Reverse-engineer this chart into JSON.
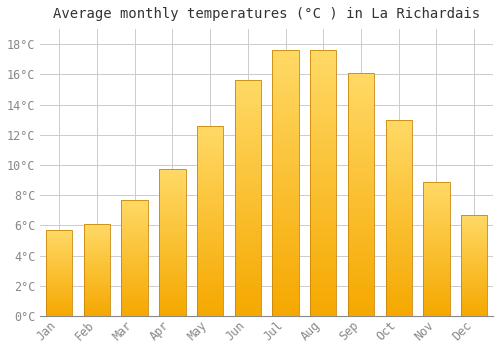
{
  "title": "Average monthly temperatures (°C ) in La Richardais",
  "months": [
    "Jan",
    "Feb",
    "Mar",
    "Apr",
    "May",
    "Jun",
    "Jul",
    "Aug",
    "Sep",
    "Oct",
    "Nov",
    "Dec"
  ],
  "temperatures": [
    5.7,
    6.1,
    7.7,
    9.7,
    12.6,
    15.6,
    17.6,
    17.6,
    16.1,
    13.0,
    8.9,
    6.7
  ],
  "bar_color_bottom": "#F5A800",
  "bar_color_top": "#FFD966",
  "bar_edge_color": "#C8860A",
  "background_color": "#FFFFFF",
  "grid_color": "#CCCCCC",
  "text_color": "#888888",
  "title_color": "#333333",
  "ylim": [
    0,
    19
  ],
  "yticks": [
    0,
    2,
    4,
    6,
    8,
    10,
    12,
    14,
    16,
    18
  ],
  "title_fontsize": 10,
  "tick_fontsize": 8.5,
  "bar_width": 0.7
}
